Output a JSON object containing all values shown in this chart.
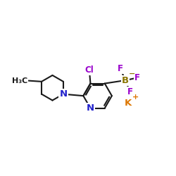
{
  "bg_color": "#ffffff",
  "bond_color": "#1a1a1a",
  "bond_width": 1.5,
  "atom_colors": {
    "N": "#2222cc",
    "Cl": "#9900cc",
    "B": "#8b7500",
    "F": "#9900cc",
    "K": "#dd7700",
    "C": "#1a1a1a"
  },
  "figsize": [
    2.5,
    2.5
  ],
  "dpi": 100,
  "xlim": [
    0,
    10
  ],
  "ylim": [
    0,
    10
  ]
}
